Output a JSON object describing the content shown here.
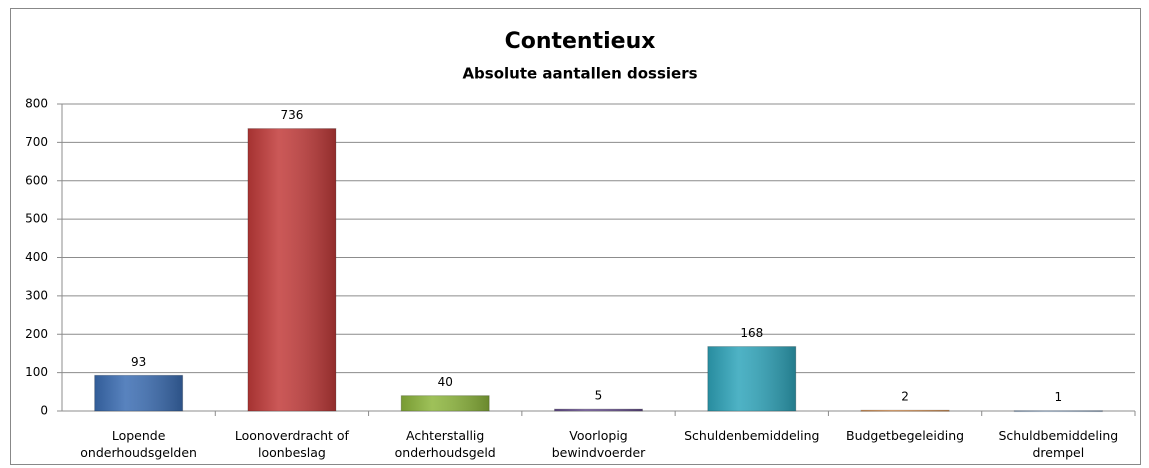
{
  "chart_data": {
    "type": "bar",
    "title": "Contentieux",
    "subtitle": "Absolute aantallen dossiers",
    "categories": [
      "Lopende\nonderhoudsgelden",
      "Loonoverdracht of\nloonbeslag",
      "Achterstallig\nonderhoudsgeld",
      "Voorlopig\nbewindvoerder",
      "Schuldenbemiddeling",
      "Budgetbegeleiding",
      "Schuldbemiddeling\ndrempel"
    ],
    "values": [
      93,
      736,
      40,
      5,
      168,
      2,
      1
    ],
    "colors": [
      "#3b6db3",
      "#c23b3a",
      "#8db63c",
      "#6c5396",
      "#2fa5bb",
      "#f0923c",
      "#93b3d8"
    ],
    "ylim": [
      0,
      800
    ],
    "yticks": [
      0,
      100,
      200,
      300,
      400,
      500,
      600,
      700,
      800
    ],
    "grid": true
  }
}
